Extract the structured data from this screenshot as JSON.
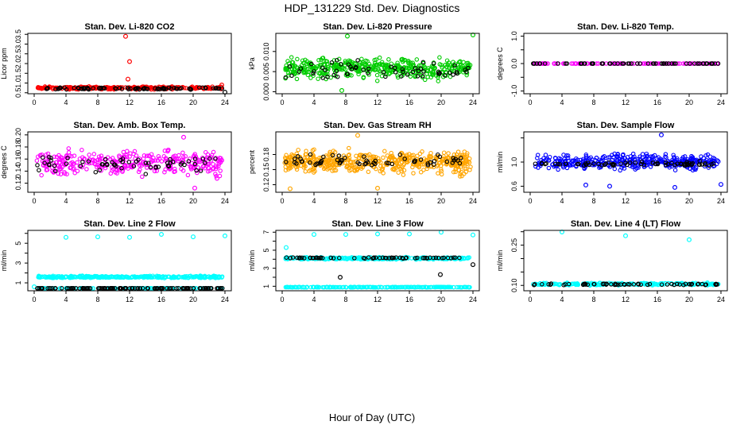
{
  "figure": {
    "title": "HDP_131229  Std. Dev. Diagnostics",
    "xlabel": "Hour of Day (UTC)"
  },
  "chart_data": [
    {
      "type": "scatter",
      "title": "Stan. Dev. Li-820 CO2",
      "ylabel": "Licor ppm",
      "xlim": [
        0,
        24
      ],
      "ylim": [
        0.45,
        3.55
      ],
      "xticks": [
        0,
        4,
        8,
        12,
        16,
        20,
        24
      ],
      "yticks": [
        0.5,
        1.0,
        1.5,
        2.0,
        2.5,
        3.0,
        3.5
      ],
      "ytick_labels": [
        "0.5",
        "1.0",
        "1.5",
        "2.0",
        "2.5",
        "3.0",
        "3.5"
      ],
      "series": [
        {
          "color": "#ff0000",
          "n": 300,
          "center": 0.75,
          "spread": 0.1,
          "outliers": [
            [
              11.5,
              3.4
            ],
            [
              12.0,
              2.1
            ],
            [
              11.8,
              1.2
            ],
            [
              23.6,
              0.9
            ]
          ]
        },
        {
          "color": "#000000",
          "n": 80,
          "center": 0.72,
          "spread": 0.07,
          "outliers": [
            [
              24,
              0.5
            ]
          ]
        }
      ]
    },
    {
      "type": "scatter",
      "title": "Stan. Dev. Li-820 Pressure",
      "ylabel": "kPa",
      "xlim": [
        0,
        24
      ],
      "ylim": [
        -0.0005,
        0.0145
      ],
      "xticks": [
        0,
        4,
        8,
        12,
        16,
        20,
        24
      ],
      "yticks": [
        0.0,
        0.005,
        0.01
      ],
      "ytick_labels": [
        "0.000",
        "0.005",
        "0.010"
      ],
      "series": [
        {
          "color": "#00cc00",
          "n": 420,
          "center": 0.0058,
          "spread": 0.0035,
          "outliers": [
            [
              8.2,
              0.0138
            ],
            [
              24.0,
              0.0142
            ],
            [
              7.5,
              0.0003
            ]
          ]
        },
        {
          "color": "#000000",
          "n": 60,
          "center": 0.0052,
          "spread": 0.003,
          "outliers": []
        }
      ]
    },
    {
      "type": "scatter",
      "title": "Stan. Dev. Li-820 Temp.",
      "ylabel": "degrees C",
      "xlim": [
        0,
        24
      ],
      "ylim": [
        -1.1,
        1.1
      ],
      "xticks": [
        0,
        4,
        8,
        12,
        16,
        20,
        24
      ],
      "yticks": [
        -1.0,
        -0.5,
        0.0,
        0.5,
        1.0
      ],
      "ytick_labels": [
        "-1.0",
        "",
        "0.0",
        "",
        "1.0"
      ],
      "series": [
        {
          "color": "#ff00ff",
          "n": 120,
          "center": 0.0,
          "spread": 0.0,
          "outliers": []
        },
        {
          "color": "#000000",
          "n": 60,
          "center": 0.0,
          "spread": 0.0,
          "outliers": []
        }
      ]
    },
    {
      "type": "scatter",
      "title": "Stan. Dev. Amb. Box Temp.",
      "ylabel": "degrees C",
      "xlim": [
        0,
        24
      ],
      "ylim": [
        0.105,
        0.205
      ],
      "xticks": [
        0,
        4,
        8,
        12,
        16,
        20,
        24
      ],
      "yticks": [
        0.12,
        0.14,
        0.16,
        0.18,
        0.2
      ],
      "ytick_labels": [
        "0.12",
        "0.14",
        "0.16",
        "0.18",
        "0.20"
      ],
      "series": [
        {
          "color": "#ff00ff",
          "n": 320,
          "center": 0.154,
          "spread": 0.028,
          "outliers": [
            [
              18.8,
              0.196
            ],
            [
              20.2,
              0.112
            ],
            [
              23.0,
              0.128
            ]
          ]
        },
        {
          "color": "#000000",
          "n": 60,
          "center": 0.152,
          "spread": 0.02,
          "outliers": []
        }
      ]
    },
    {
      "type": "scatter",
      "title": "Stan. Dev. Gas Stream RH",
      "ylabel": "percent",
      "xlim": [
        0,
        24
      ],
      "ylim": [
        0.105,
        0.225
      ],
      "xticks": [
        0,
        4,
        8,
        12,
        16,
        20,
        24
      ],
      "yticks": [
        0.12,
        0.15,
        0.18
      ],
      "ytick_labels": [
        "0.12",
        "0.15",
        "0.18"
      ],
      "series": [
        {
          "color": "#ffa500",
          "n": 480,
          "center": 0.165,
          "spread": 0.03,
          "outliers": [
            [
              9.5,
              0.218
            ],
            [
              1.0,
              0.112
            ],
            [
              12.0,
              0.113
            ]
          ]
        },
        {
          "color": "#000000",
          "n": 60,
          "center": 0.167,
          "spread": 0.018,
          "outliers": []
        }
      ]
    },
    {
      "type": "scatter",
      "title": "Stan. Dev. Sample Flow",
      "ylabel": "ml/min",
      "xlim": [
        0,
        24
      ],
      "ylim": [
        0.5,
        1.5
      ],
      "xticks": [
        0,
        4,
        8,
        12,
        16,
        20,
        24
      ],
      "yticks": [
        0.6,
        1.0,
        1.4
      ],
      "ytick_labels": [
        "0.6",
        "1.0",
        ""
      ],
      "series": [
        {
          "color": "#0000ff",
          "n": 360,
          "center": 1.0,
          "spread": 0.18,
          "outliers": [
            [
              16.5,
              1.45
            ],
            [
              18.2,
              0.58
            ],
            [
              24.0,
              0.63
            ],
            [
              7.0,
              0.62
            ],
            [
              10.0,
              0.6
            ]
          ]
        },
        {
          "color": "#000000",
          "n": 70,
          "center": 0.97,
          "spread": 0.05,
          "outliers": []
        }
      ]
    },
    {
      "type": "scatter",
      "title": "Stan. Dev. Line 2 Flow",
      "ylabel": "ml/min",
      "xlim": [
        0,
        24
      ],
      "ylim": [
        0.2,
        6.3
      ],
      "xticks": [
        0,
        4,
        8,
        12,
        16,
        20,
        24
      ],
      "yticks": [
        1,
        2,
        3,
        4,
        5,
        6
      ],
      "ytick_labels": [
        "1",
        "",
        "3",
        "",
        "5",
        ""
      ],
      "series": [
        {
          "color": "#00ffff",
          "n": 300,
          "center": 1.6,
          "spread": 0.15,
          "outliers": [
            [
              4,
              5.6
            ],
            [
              8,
              5.65
            ],
            [
              12,
              5.6
            ],
            [
              16,
              5.9
            ],
            [
              20,
              5.65
            ],
            [
              24,
              5.75
            ],
            [
              0,
              0.6
            ]
          ]
        },
        {
          "color": "#00ffff",
          "n": 120,
          "center": 0.45,
          "spread": 0.02,
          "outliers": []
        },
        {
          "color": "#000000",
          "n": 120,
          "center": 0.45,
          "spread": 0.02,
          "outliers": []
        }
      ]
    },
    {
      "type": "scatter",
      "title": "Stan. Dev. Line 3 Flow",
      "ylabel": "ml/min",
      "xlim": [
        0,
        24
      ],
      "ylim": [
        0.5,
        7.2
      ],
      "xticks": [
        0,
        4,
        8,
        12,
        16,
        20,
        24
      ],
      "yticks": [
        1,
        2,
        3,
        4,
        5,
        6,
        7
      ],
      "ytick_labels": [
        "1",
        "",
        "3",
        "",
        "5",
        "",
        "7"
      ],
      "series": [
        {
          "color": "#00ffff",
          "n": 300,
          "center": 4.1,
          "spread": 0.18,
          "outliers": [
            [
              0.5,
              5.3
            ],
            [
              4,
              6.75
            ],
            [
              8,
              6.75
            ],
            [
              12,
              6.8
            ],
            [
              16,
              6.8
            ],
            [
              20,
              7.0
            ],
            [
              24,
              6.7
            ]
          ]
        },
        {
          "color": "#00ffff",
          "n": 200,
          "center": 0.9,
          "spread": 0.04,
          "outliers": []
        },
        {
          "color": "#000000",
          "n": 60,
          "center": 4.15,
          "spread": 0.08,
          "outliers": [
            [
              7.3,
              2.0
            ],
            [
              19.9,
              2.3
            ],
            [
              24,
              3.4
            ]
          ]
        }
      ]
    },
    {
      "type": "scatter",
      "title": "Stan. Dev. Line 4 (LT) Flow",
      "ylabel": "ml/min",
      "xlim": [
        0,
        24
      ],
      "ylim": [
        0.08,
        0.305
      ],
      "xticks": [
        0,
        4,
        8,
        12,
        16,
        20,
        24
      ],
      "yticks": [
        0.1,
        0.15,
        0.2,
        0.25,
        0.3
      ],
      "ytick_labels": [
        "0.10",
        "",
        "",
        "0.25",
        ""
      ],
      "series": [
        {
          "color": "#00ffff",
          "n": 220,
          "center": 0.105,
          "spread": 0.006,
          "outliers": [
            [
              4,
              0.302
            ],
            [
              12,
              0.285
            ],
            [
              20,
              0.27
            ]
          ]
        },
        {
          "color": "#000000",
          "n": 60,
          "center": 0.104,
          "spread": 0.004,
          "outliers": []
        }
      ]
    }
  ]
}
